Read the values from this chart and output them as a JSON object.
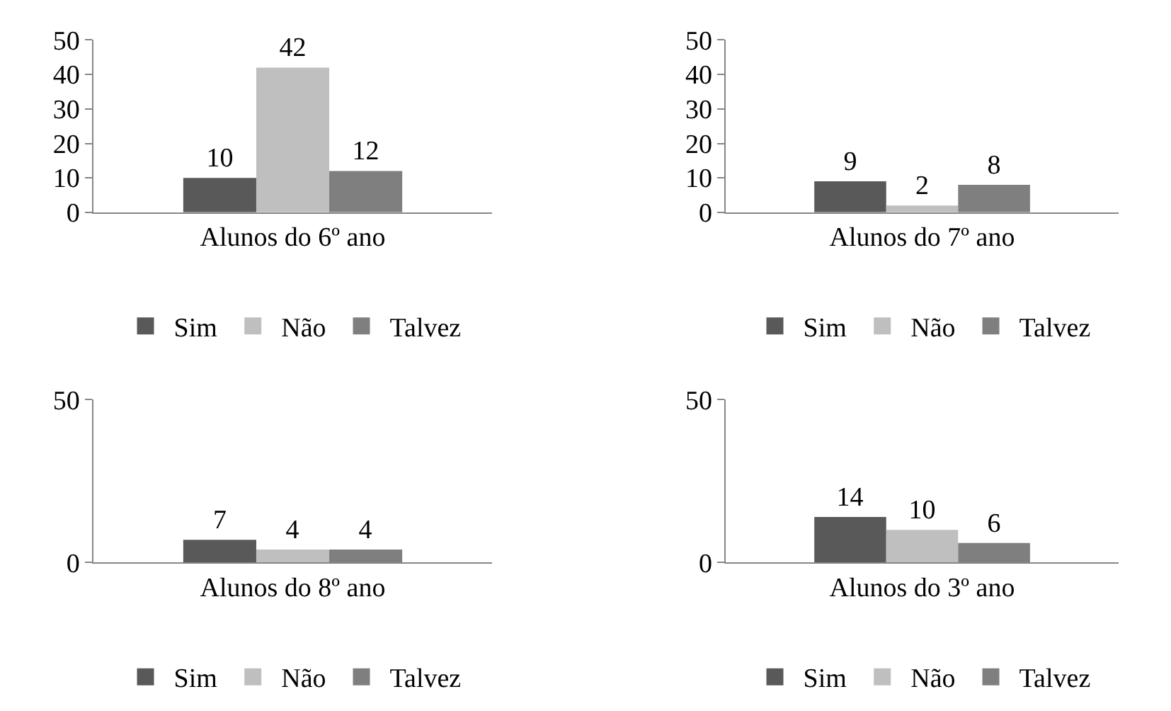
{
  "chart_data": [
    {
      "type": "bar",
      "categories": [
        "Alunos do 6º ano"
      ],
      "series": [
        {
          "name": "Sim",
          "color": "#595959",
          "values": [
            10
          ]
        },
        {
          "name": "Não",
          "color": "#bfbfbf",
          "values": [
            42
          ]
        },
        {
          "name": "Talvez",
          "color": "#7f7f7f",
          "values": [
            12
          ]
        }
      ],
      "ylim": [
        0,
        50
      ],
      "yticks": [
        0,
        10,
        20,
        30,
        40,
        50
      ],
      "data_labels": true,
      "legend": "bottom"
    },
    {
      "type": "bar",
      "categories": [
        "Alunos do 7º ano"
      ],
      "series": [
        {
          "name": "Sim",
          "color": "#595959",
          "values": [
            9
          ]
        },
        {
          "name": "Não",
          "color": "#bfbfbf",
          "values": [
            2
          ]
        },
        {
          "name": "Talvez",
          "color": "#7f7f7f",
          "values": [
            8
          ]
        }
      ],
      "ylim": [
        0,
        50
      ],
      "yticks": [
        0,
        10,
        20,
        30,
        40,
        50
      ],
      "data_labels": true,
      "legend": "bottom"
    },
    {
      "type": "bar",
      "categories": [
        "Alunos do 8º ano"
      ],
      "series": [
        {
          "name": "Sim",
          "color": "#595959",
          "values": [
            7
          ]
        },
        {
          "name": "Não",
          "color": "#bfbfbf",
          "values": [
            4
          ]
        },
        {
          "name": "Talvez",
          "color": "#7f7f7f",
          "values": [
            4
          ]
        }
      ],
      "ylim": [
        0,
        50
      ],
      "yticks": [
        0,
        50
      ],
      "data_labels": true,
      "legend": "bottom"
    },
    {
      "type": "bar",
      "categories": [
        "Alunos do 3º ano"
      ],
      "series": [
        {
          "name": "Sim",
          "color": "#595959",
          "values": [
            14
          ]
        },
        {
          "name": "Não",
          "color": "#bfbfbf",
          "values": [
            10
          ]
        },
        {
          "name": "Talvez",
          "color": "#7f7f7f",
          "values": [
            6
          ]
        }
      ],
      "ylim": [
        0,
        50
      ],
      "yticks": [
        0,
        50
      ],
      "data_labels": true,
      "legend": "bottom"
    }
  ]
}
